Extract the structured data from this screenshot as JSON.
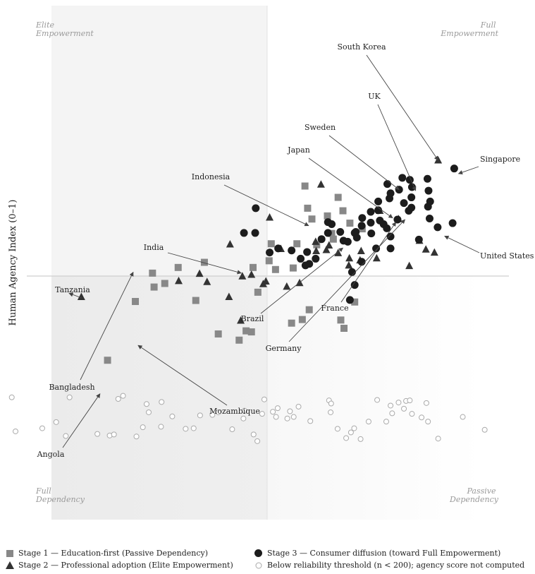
{
  "chart_data": {
    "type": "scatter",
    "title": "",
    "xlabel": "",
    "ylabel": "Human Agency Index  (0–1)",
    "xlim": [
      0,
      1
    ],
    "ylim": [
      0,
      1
    ],
    "grid": false,
    "legend_placement": "bottom",
    "quadrants": {
      "top_left": [
        "Elite",
        "Empowerment"
      ],
      "top_right": [
        "Full",
        "Empowerment"
      ],
      "bottom_left": [
        "Full",
        "Dependency"
      ],
      "bottom_right": [
        "Passive",
        "Dependency"
      ]
    },
    "series": [
      {
        "name": "Stage 1 — Education-first (Passive Dependency)",
        "marker": "square",
        "color": "#888888",
        "points": [
          [
            0.57,
            0.65
          ],
          [
            0.575,
            0.607
          ],
          [
            0.583,
            0.586
          ],
          [
            0.641,
            0.602
          ],
          [
            0.654,
            0.578
          ],
          [
            0.62,
            0.558
          ],
          [
            0.555,
            0.538
          ],
          [
            0.507,
            0.538
          ],
          [
            0.592,
            0.536
          ],
          [
            0.623,
            0.547
          ],
          [
            0.503,
            0.505
          ],
          [
            0.515,
            0.488
          ],
          [
            0.548,
            0.491
          ],
          [
            0.473,
            0.492
          ],
          [
            0.382,
            0.502
          ],
          [
            0.333,
            0.492
          ],
          [
            0.285,
            0.481
          ],
          [
            0.308,
            0.461
          ],
          [
            0.366,
            0.428
          ],
          [
            0.482,
            0.444
          ],
          [
            0.663,
            0.425
          ],
          [
            0.578,
            0.41
          ],
          [
            0.565,
            0.391
          ],
          [
            0.46,
            0.369
          ],
          [
            0.47,
            0.367
          ],
          [
            0.447,
            0.351
          ],
          [
            0.637,
            0.39
          ],
          [
            0.643,
            0.374
          ],
          [
            0.545,
            0.384
          ],
          [
            0.408,
            0.363
          ],
          [
            0.253,
            0.426
          ],
          [
            0.288,
            0.454
          ],
          [
            0.201,
            0.312
          ],
          [
            0.612,
            0.592
          ],
          [
            0.632,
            0.628
          ],
          [
            0.677,
            0.567
          ]
        ]
      },
      {
        "name": "Stage 2 — Professional adoption (Elite Empowerment)",
        "marker": "triangle",
        "color": "#333333",
        "points": [
          [
            0.6,
            0.653
          ],
          [
            0.504,
            0.589
          ],
          [
            0.43,
            0.537
          ],
          [
            0.59,
            0.542
          ],
          [
            0.615,
            0.535
          ],
          [
            0.61,
            0.526
          ],
          [
            0.525,
            0.528
          ],
          [
            0.632,
            0.52
          ],
          [
            0.653,
            0.51
          ],
          [
            0.704,
            0.51
          ],
          [
            0.652,
            0.496
          ],
          [
            0.673,
            0.506
          ],
          [
            0.675,
            0.524
          ],
          [
            0.765,
            0.495
          ],
          [
            0.784,
            0.544
          ],
          [
            0.796,
            0.527
          ],
          [
            0.812,
            0.521
          ],
          [
            0.819,
            0.7
          ],
          [
            0.745,
            0.586
          ],
          [
            0.71,
            0.602
          ],
          [
            0.453,
            0.475
          ],
          [
            0.47,
            0.478
          ],
          [
            0.492,
            0.46
          ],
          [
            0.497,
            0.465
          ],
          [
            0.56,
            0.462
          ],
          [
            0.536,
            0.455
          ],
          [
            0.387,
            0.464
          ],
          [
            0.428,
            0.435
          ],
          [
            0.45,
            0.389
          ],
          [
            0.334,
            0.466
          ],
          [
            0.152,
            0.435
          ],
          [
            0.373,
            0.48
          ],
          [
            0.591,
            0.524
          ]
        ]
      },
      {
        "name": "Stage 3 — Consumer diffusion (toward Full Empowerment)",
        "marker": "circle",
        "color": "#1c1c1c",
        "points": [
          [
            0.478,
            0.607
          ],
          [
            0.477,
            0.559
          ],
          [
            0.504,
            0.521
          ],
          [
            0.456,
            0.559
          ],
          [
            0.52,
            0.529
          ],
          [
            0.545,
            0.525
          ],
          [
            0.574,
            0.522
          ],
          [
            0.59,
            0.509
          ],
          [
            0.571,
            0.496
          ],
          [
            0.613,
            0.58
          ],
          [
            0.62,
            0.576
          ],
          [
            0.636,
            0.561
          ],
          [
            0.613,
            0.559
          ],
          [
            0.601,
            0.547
          ],
          [
            0.663,
            0.559
          ],
          [
            0.642,
            0.544
          ],
          [
            0.667,
            0.55
          ],
          [
            0.65,
            0.542
          ],
          [
            0.677,
            0.588
          ],
          [
            0.693,
            0.6
          ],
          [
            0.707,
            0.62
          ],
          [
            0.728,
            0.626
          ],
          [
            0.724,
            0.654
          ],
          [
            0.73,
            0.636
          ],
          [
            0.746,
            0.643
          ],
          [
            0.755,
            0.617
          ],
          [
            0.764,
            0.602
          ],
          [
            0.769,
            0.628
          ],
          [
            0.743,
            0.585
          ],
          [
            0.71,
            0.583
          ],
          [
            0.717,
            0.576
          ],
          [
            0.723,
            0.568
          ],
          [
            0.73,
            0.552
          ],
          [
            0.707,
            0.603
          ],
          [
            0.693,
            0.579
          ],
          [
            0.676,
            0.573
          ],
          [
            0.665,
            0.561
          ],
          [
            0.694,
            0.558
          ],
          [
            0.703,
            0.529
          ],
          [
            0.73,
            0.529
          ],
          [
            0.752,
            0.666
          ],
          [
            0.766,
            0.662
          ],
          [
            0.77,
            0.648
          ],
          [
            0.769,
            0.608
          ],
          [
            0.799,
            0.664
          ],
          [
            0.801,
            0.641
          ],
          [
            0.8,
            0.61
          ],
          [
            0.804,
            0.62
          ],
          [
            0.803,
            0.587
          ],
          [
            0.783,
            0.546
          ],
          [
            0.818,
            0.57
          ],
          [
            0.849,
            0.684
          ],
          [
            0.846,
            0.578
          ],
          [
            0.562,
            0.509
          ],
          [
            0.578,
            0.499
          ],
          [
            0.676,
            0.503
          ],
          [
            0.658,
            0.483
          ],
          [
            0.654,
            0.429
          ],
          [
            0.663,
            0.458
          ]
        ]
      },
      {
        "name": "Below reliability threshold (n < 200); agency score not computed",
        "marker": "open-circle",
        "color": "#aaaaaa",
        "points": [
          [
            0.029,
            0.174
          ],
          [
            0.079,
            0.18
          ],
          [
            0.105,
            0.192
          ],
          [
            0.123,
            0.165
          ],
          [
            0.182,
            0.169
          ],
          [
            0.205,
            0.166
          ],
          [
            0.213,
            0.168
          ],
          [
            0.255,
            0.164
          ],
          [
            0.267,
            0.182
          ],
          [
            0.301,
            0.183
          ],
          [
            0.347,
            0.179
          ],
          [
            0.362,
            0.18
          ],
          [
            0.374,
            0.205
          ],
          [
            0.408,
            0.211
          ],
          [
            0.434,
            0.178
          ],
          [
            0.455,
            0.199
          ],
          [
            0.457,
            0.214
          ],
          [
            0.474,
            0.168
          ],
          [
            0.481,
            0.155
          ],
          [
            0.51,
            0.212
          ],
          [
            0.516,
            0.202
          ],
          [
            0.537,
            0.199
          ],
          [
            0.542,
            0.213
          ],
          [
            0.549,
            0.202
          ],
          [
            0.58,
            0.194
          ],
          [
            0.618,
            0.211
          ],
          [
            0.631,
            0.179
          ],
          [
            0.647,
            0.161
          ],
          [
            0.656,
            0.172
          ],
          [
            0.662,
            0.18
          ],
          [
            0.674,
            0.159
          ],
          [
            0.689,
            0.193
          ],
          [
            0.722,
            0.193
          ],
          [
            0.733,
            0.209
          ],
          [
            0.759,
            0.233
          ],
          [
            0.77,
            0.208
          ],
          [
            0.788,
            0.201
          ],
          [
            0.8,
            0.193
          ],
          [
            0.819,
            0.16
          ],
          [
            0.865,
            0.202
          ],
          [
            0.906,
            0.177
          ],
          [
            0.022,
            0.24
          ],
          [
            0.13,
            0.24
          ],
          [
            0.221,
            0.237
          ],
          [
            0.23,
            0.243
          ],
          [
            0.278,
            0.211
          ],
          [
            0.274,
            0.227
          ],
          [
            0.302,
            0.231
          ],
          [
            0.322,
            0.203
          ],
          [
            0.397,
            0.206
          ],
          [
            0.49,
            0.208
          ],
          [
            0.494,
            0.236
          ],
          [
            0.519,
            0.219
          ],
          [
            0.558,
            0.222
          ],
          [
            0.615,
            0.234
          ],
          [
            0.619,
            0.228
          ],
          [
            0.705,
            0.235
          ],
          [
            0.73,
            0.224
          ],
          [
            0.745,
            0.23
          ],
          [
            0.755,
            0.218
          ],
          [
            0.766,
            0.234
          ],
          [
            0.797,
            0.229
          ]
        ]
      }
    ],
    "annotations": [
      {
        "text": "South Korea",
        "point": [
          0.819,
          0.7
        ]
      },
      {
        "text": "UK",
        "point": [
          0.777,
          0.641
        ]
      },
      {
        "text": "Sweden",
        "point": [
          0.746,
          0.643
        ]
      },
      {
        "text": "Japan",
        "point": [
          0.734,
          0.588
        ]
      },
      {
        "text": "Singapore",
        "point": [
          0.857,
          0.674
        ]
      },
      {
        "text": "Indonesia",
        "point": [
          0.577,
          0.573
        ]
      },
      {
        "text": "India",
        "point": [
          0.451,
          0.481
        ]
      },
      {
        "text": "Tanzania",
        "point": [
          0.129,
          0.442
        ]
      },
      {
        "text": "Brazil",
        "point": [
          0.641,
          0.53
        ]
      },
      {
        "text": "France",
        "point": [
          0.74,
          0.58
        ]
      },
      {
        "text": "Germany",
        "point": [
          0.757,
          0.585
        ]
      },
      {
        "text": "United States",
        "point": [
          0.831,
          0.553
        ]
      },
      {
        "text": "Bangladesh",
        "point": [
          0.249,
          0.483
        ]
      },
      {
        "text": "Mozambique",
        "point": [
          0.258,
          0.341
        ]
      },
      {
        "text": "Angola",
        "point": [
          0.187,
          0.247
        ]
      }
    ]
  }
}
